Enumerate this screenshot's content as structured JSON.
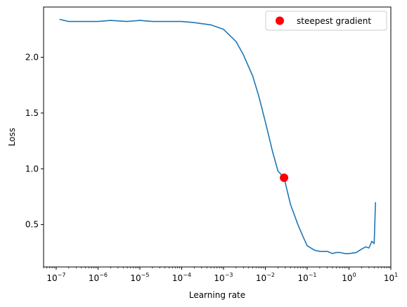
{
  "chart_data": {
    "type": "line",
    "xscale": "log",
    "xlim": [
      5e-08,
      10
    ],
    "ylim": [
      0.12,
      2.45
    ],
    "xlabel": "Learning rate",
    "ylabel": "Loss",
    "xticks": [
      {
        "value": 1e-07,
        "base": "10",
        "exp": "−7"
      },
      {
        "value": 1e-06,
        "base": "10",
        "exp": "−6"
      },
      {
        "value": 1e-05,
        "base": "10",
        "exp": "−5"
      },
      {
        "value": 0.0001,
        "base": "10",
        "exp": "−4"
      },
      {
        "value": 0.001,
        "base": "10",
        "exp": "−3"
      },
      {
        "value": 0.01,
        "base": "10",
        "exp": "−2"
      },
      {
        "value": 0.1,
        "base": "10",
        "exp": "−1"
      },
      {
        "value": 1,
        "base": "10",
        "exp": "0"
      },
      {
        "value": 10,
        "base": "10",
        "exp": "1"
      }
    ],
    "yticks": [
      {
        "value": 0.5,
        "label": "0.5"
      },
      {
        "value": 1.0,
        "label": "1.0"
      },
      {
        "value": 1.5,
        "label": "1.5"
      },
      {
        "value": 2.0,
        "label": "2.0"
      }
    ],
    "series": [
      {
        "color": "#1f77b4",
        "x": [
          1.2e-07,
          2e-07,
          3e-07,
          5e-07,
          1e-06,
          2e-06,
          5e-06,
          1e-05,
          2e-05,
          5e-05,
          0.0001,
          0.0002,
          0.0005,
          0.001,
          0.002,
          0.003,
          0.005,
          0.007,
          0.01,
          0.015,
          0.02,
          0.028,
          0.04,
          0.06,
          0.08,
          0.1,
          0.15,
          0.2,
          0.3,
          0.4,
          0.5,
          0.6,
          0.8,
          1.0,
          1.5,
          2.0,
          2.5,
          3.0,
          3.5,
          4.0,
          4.3
        ],
        "y": [
          2.34,
          2.32,
          2.32,
          2.32,
          2.32,
          2.33,
          2.32,
          2.33,
          2.32,
          2.32,
          2.32,
          2.31,
          2.29,
          2.25,
          2.14,
          2.02,
          1.83,
          1.65,
          1.42,
          1.15,
          0.98,
          0.92,
          0.68,
          0.5,
          0.39,
          0.31,
          0.27,
          0.26,
          0.26,
          0.24,
          0.25,
          0.25,
          0.24,
          0.24,
          0.25,
          0.28,
          0.3,
          0.29,
          0.35,
          0.33,
          0.7
        ]
      }
    ],
    "marker": {
      "x": 0.028,
      "y": 0.92,
      "color": "#ff0000"
    },
    "legend": {
      "position": "top-right",
      "entries": [
        {
          "label": "steepest gradient",
          "color": "#ff0000"
        }
      ]
    }
  }
}
